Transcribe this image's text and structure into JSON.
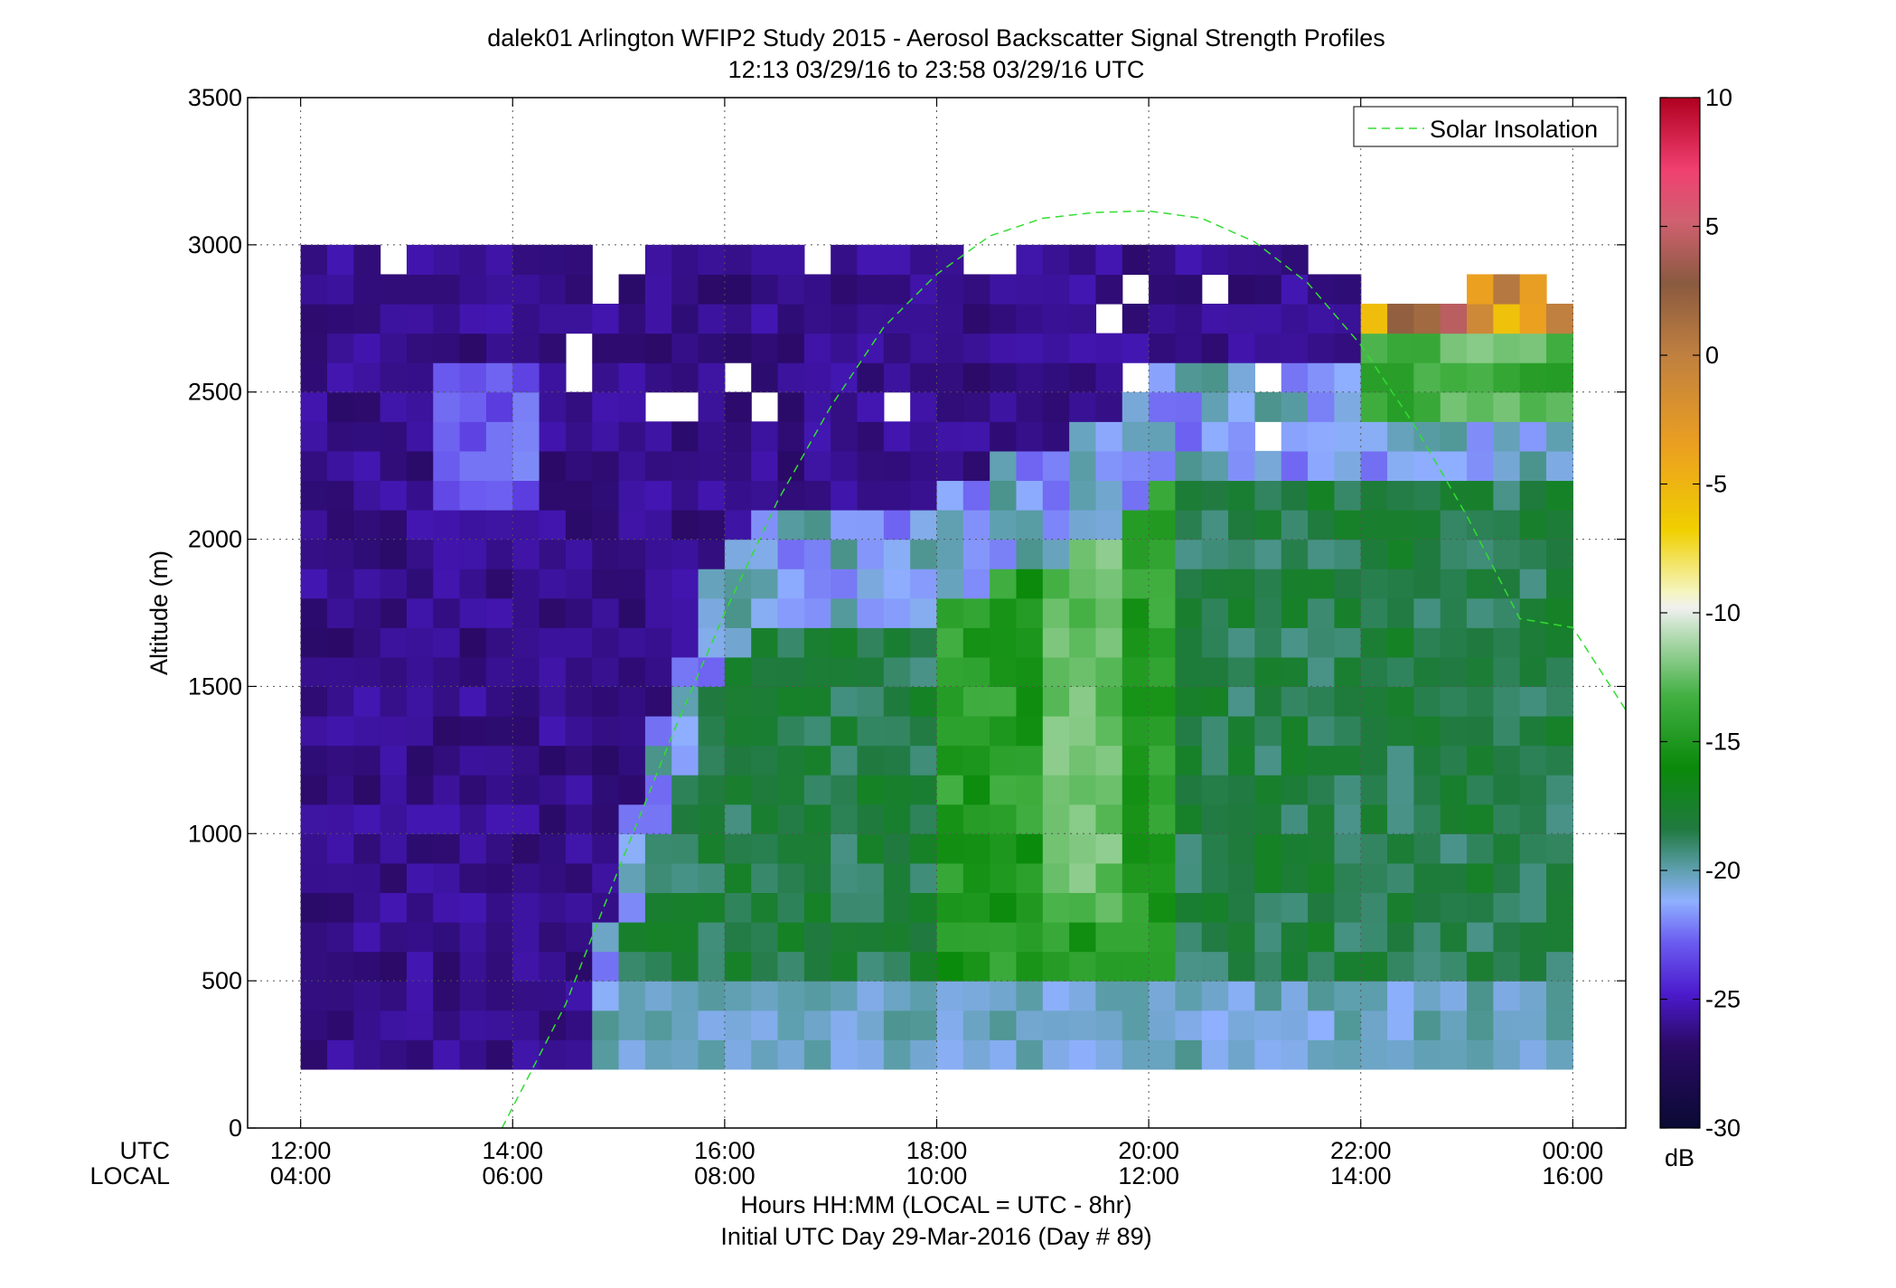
{
  "chart_data": {
    "type": "heatmap",
    "title": "dalek01 Arlington WFIP2 Study 2015 - Aerosol Backscatter Signal Strength Profiles",
    "subtitle": "12:13 03/29/16 to 23:58 03/29/16  UTC",
    "xlabel": "Hours HH:MM  (LOCAL = UTC - 8hr)",
    "xlabel2": "Initial UTC Day 29-Mar-2016 (Day # 89)",
    "ylabel": "Altitude (m)",
    "xlim": [
      11.5,
      24.5
    ],
    "ylim": [
      0,
      3500
    ],
    "x_axis_rows": [
      "UTC",
      "LOCAL"
    ],
    "x_ticks": [
      {
        "value": 12,
        "utc": "12:00",
        "local": "04:00"
      },
      {
        "value": 14,
        "utc": "14:00",
        "local": "06:00"
      },
      {
        "value": 16,
        "utc": "16:00",
        "local": "08:00"
      },
      {
        "value": 18,
        "utc": "18:00",
        "local": "10:00"
      },
      {
        "value": 20,
        "utc": "20:00",
        "local": "12:00"
      },
      {
        "value": 22,
        "utc": "22:00",
        "local": "14:00"
      },
      {
        "value": 24,
        "utc": "00:00",
        "local": "16:00"
      }
    ],
    "y_ticks": [
      {
        "value": 0,
        "label": "0"
      },
      {
        "value": 500,
        "label": "500"
      },
      {
        "value": 1000,
        "label": "1000"
      },
      {
        "value": 1500,
        "label": "1500"
      },
      {
        "value": 2000,
        "label": "2000"
      },
      {
        "value": 2500,
        "label": "2500"
      },
      {
        "value": 3000,
        "label": "3000"
      },
      {
        "value": 3500,
        "label": "3500"
      }
    ],
    "grid": "dotted",
    "legend": {
      "position": "top-right",
      "entries": [
        {
          "label": "Solar Insolation",
          "color": "#33dd33",
          "style": "dashed"
        }
      ]
    },
    "colorbar": {
      "label": "dB",
      "range": [
        -30,
        10
      ],
      "ticks": [
        {
          "value": 10,
          "label": "10"
        },
        {
          "value": 5,
          "label": "5"
        },
        {
          "value": 0,
          "label": "0"
        },
        {
          "value": -5,
          "label": "-5"
        },
        {
          "value": -10,
          "label": "-10"
        },
        {
          "value": -15,
          "label": "-15"
        },
        {
          "value": -20,
          "label": "-20"
        },
        {
          "value": -25,
          "label": "-25"
        },
        {
          "value": -30,
          "label": "-30"
        }
      ]
    },
    "grid_cells": {
      "x_start": 12.0,
      "time_step_hours": 0.25,
      "columns": 48,
      "altitude_bottom": 200,
      "altitude_step": 100,
      "rows": 28,
      "note_column_ranges": "per column: [max altitude of data, and value segments in dB from bottom]"
    },
    "series": [
      {
        "name": "Solar Insolation",
        "x": [
          13.9,
          14.5,
          15.0,
          15.5,
          16.0,
          16.5,
          17.0,
          17.5,
          18.0,
          18.5,
          19.0,
          19.5,
          20.0,
          20.5,
          21.0,
          21.5,
          22.0,
          22.5,
          23.0,
          23.5,
          24.0,
          24.5
        ],
        "y": [
          0,
          420,
          880,
          1330,
          1750,
          2130,
          2450,
          2720,
          2900,
          3030,
          3090,
          3110,
          3115,
          3090,
          3010,
          2870,
          2660,
          2390,
          2080,
          1730,
          1700,
          1420
        ]
      }
    ]
  },
  "colors": {
    "no_data": "#ffffff",
    "legend_line": "#33dd33"
  }
}
